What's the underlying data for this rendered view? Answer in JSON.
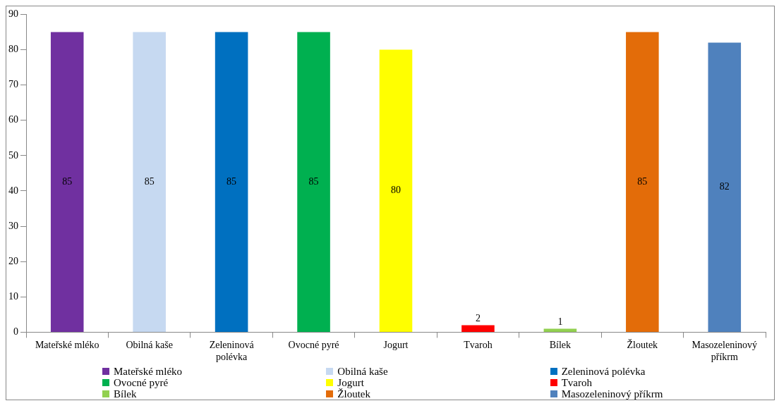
{
  "chart_data": {
    "type": "bar",
    "categories": [
      "Mateřské mléko",
      "Obilná kaše",
      "Zeleninová polévka",
      "Ovocné pyré",
      "Jogurt",
      "Tvaroh",
      "Bílek",
      "Žloutek",
      "Masozeleninový příkrm"
    ],
    "series": [
      {
        "name": "Mateřské mléko",
        "color": "#7030a0",
        "values": [
          85,
          null,
          null,
          null,
          null,
          null,
          null,
          null,
          null
        ]
      },
      {
        "name": "Obilná kaše",
        "color": "#c6d9f1",
        "values": [
          null,
          85,
          null,
          null,
          null,
          null,
          null,
          null,
          null
        ]
      },
      {
        "name": "Zeleninová polévka",
        "color": "#0070c0",
        "values": [
          null,
          null,
          85,
          null,
          null,
          null,
          null,
          null,
          null
        ]
      },
      {
        "name": "Ovocné pyré",
        "color": "#00b050",
        "values": [
          null,
          null,
          null,
          85,
          null,
          null,
          null,
          null,
          null
        ]
      },
      {
        "name": "Jogurt",
        "color": "#ffff00",
        "values": [
          null,
          null,
          null,
          null,
          80,
          null,
          null,
          null,
          null
        ]
      },
      {
        "name": "Tvaroh",
        "color": "#ff0000",
        "values": [
          null,
          null,
          null,
          null,
          null,
          2,
          null,
          null,
          null
        ]
      },
      {
        "name": "Bílek",
        "color": "#92d050",
        "values": [
          null,
          null,
          null,
          null,
          null,
          null,
          1,
          null,
          null
        ]
      },
      {
        "name": "Žloutek",
        "color": "#e36c09",
        "values": [
          null,
          null,
          null,
          null,
          null,
          null,
          null,
          85,
          null
        ]
      },
      {
        "name": "Masozeleninový příkrm",
        "color": "#4f81bd",
        "values": [
          null,
          null,
          null,
          null,
          null,
          null,
          null,
          null,
          82
        ]
      }
    ],
    "ylim": [
      0,
      90
    ],
    "yticks": [
      0,
      10,
      20,
      30,
      40,
      50,
      60,
      70,
      80,
      90
    ],
    "grid": false,
    "legend": "bottom",
    "data_labels": true
  }
}
